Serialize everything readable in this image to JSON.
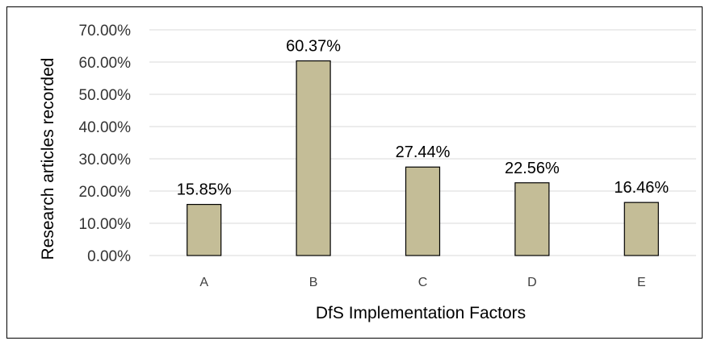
{
  "chart_data": {
    "type": "bar",
    "categories": [
      "A",
      "B",
      "C",
      "D",
      "E"
    ],
    "values": [
      15.85,
      60.37,
      27.44,
      22.56,
      16.46
    ],
    "data_labels": [
      "15.85%",
      "60.37%",
      "27.44%",
      "22.56%",
      "16.46%"
    ],
    "title": "",
    "xlabel": "DfS Implementation Factors",
    "ylabel": "Research articles recorded",
    "ylim": [
      0,
      70
    ],
    "yticks": [
      0,
      10,
      20,
      30,
      40,
      50,
      60,
      70
    ],
    "ytick_labels": [
      "0.00%",
      "10.00%",
      "20.00%",
      "30.00%",
      "40.00%",
      "50.00%",
      "60.00%",
      "70.00%"
    ],
    "grid": true,
    "legend": "none",
    "colors": {
      "bar_fill": "#c4bd97",
      "bar_stroke": "#000000",
      "grid": "#d9d9d9"
    }
  }
}
